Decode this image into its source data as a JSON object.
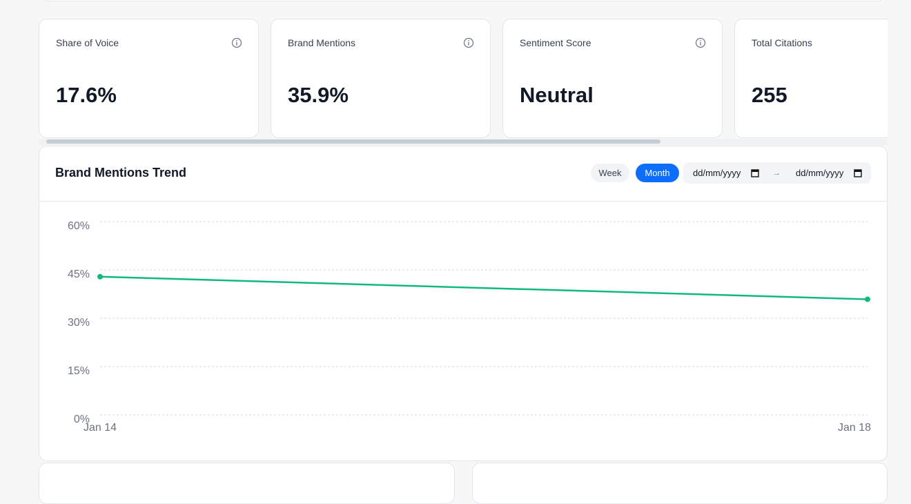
{
  "cards": [
    {
      "label": "Share of Voice",
      "value": "17.6%"
    },
    {
      "label": "Brand Mentions",
      "value": "35.9%"
    },
    {
      "label": "Sentiment Score",
      "value": "Neutral"
    },
    {
      "label": "Total Citations",
      "value": "255"
    }
  ],
  "trend": {
    "buttons": [
      "Week",
      "Month"
    ],
    "date_placeholders": [
      "dd/mm/yyyy",
      "dd/mm/yyyy"
    ],
    "arrow": "→"
  },
  "chart_data": {
    "type": "line",
    "title": "Brand Mentions Trend",
    "categories": [
      "Jan 14",
      "Jan 18"
    ],
    "series": [
      {
        "name": "Brand Mentions",
        "color": "#10b981",
        "values": [
          42.9,
          35.9
        ]
      }
    ],
    "ylim": [
      0,
      60
    ],
    "yticks": [
      {
        "value": 0,
        "label": "0%"
      },
      {
        "value": 15,
        "label": "15%"
      },
      {
        "value": 30,
        "label": "30%"
      },
      {
        "value": 45,
        "label": "45%"
      },
      {
        "value": 60,
        "label": "60%"
      }
    ],
    "grid": true
  }
}
